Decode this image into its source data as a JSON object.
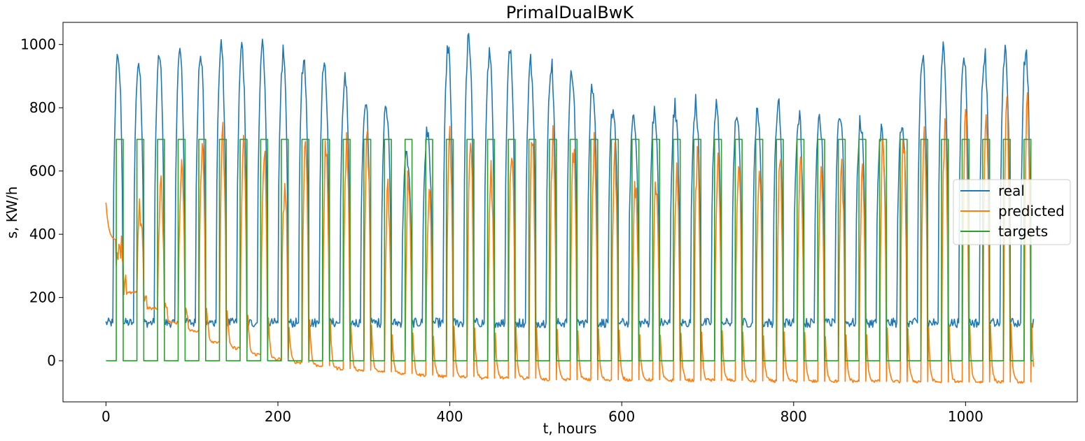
{
  "chart_data": {
    "type": "line",
    "title": "PrimalDualBwK",
    "xlabel": "t, hours",
    "ylabel": "s, KW/h",
    "xlim": [
      -50,
      1130
    ],
    "ylim": [
      -130,
      1070
    ],
    "xticks": [
      0,
      200,
      400,
      600,
      800,
      1000
    ],
    "yticks": [
      0,
      200,
      400,
      600,
      800,
      1000
    ],
    "grid": false,
    "legend_position": "center-right",
    "period_hours": 24,
    "n_days": 45,
    "n_points": 1080,
    "series": [
      {
        "name": "real",
        "color": "#1f77b4",
        "baseline": 120,
        "daily_peaks": [
          960,
          945,
          960,
          975,
          965,
          985,
          975,
          995,
          965,
          955,
          950,
          890,
          810,
          810,
          650,
          720,
          980,
          1015,
          975,
          990,
          945,
          940,
          920,
          880,
          810,
          780,
          780,
          800,
          810,
          800,
          785,
          780,
          810,
          780,
          780,
          790,
          760,
          730,
          750,
          960,
          990,
          975,
          970,
          975,
          975
        ]
      },
      {
        "name": "predicted",
        "color": "#ff7f0e",
        "start_value": 500,
        "daily_peaks": [
          380,
          475,
          550,
          615,
          660,
          700,
          660,
          660,
          560,
          690,
          680,
          690,
          700,
          530,
          590,
          510,
          700,
          700,
          590,
          700,
          690,
          700,
          680,
          670,
          650,
          570,
          570,
          590,
          650,
          650,
          630,
          600,
          620,
          620,
          580,
          590,
          580,
          690,
          700,
          720,
          740,
          760,
          780,
          785,
          795
        ],
        "daily_night_lows": [
          300,
          215,
          165,
          120,
          95,
          60,
          40,
          20,
          5,
          -5,
          -15,
          -25,
          -30,
          -35,
          -40,
          -45,
          -50,
          -50,
          -55,
          -55,
          -55,
          -60,
          -60,
          -60,
          -60,
          -60,
          -60,
          -62,
          -62,
          -62,
          -62,
          -64,
          -64,
          -64,
          -65,
          -65,
          -65,
          -65,
          -66,
          -66,
          -67,
          -67,
          -67,
          -67,
          -67
        ]
      },
      {
        "name": "targets",
        "color": "#2ca02c",
        "low": 0,
        "high": 700,
        "high_start_offset_hours": 12,
        "high_duration_hours": 8
      }
    ]
  }
}
